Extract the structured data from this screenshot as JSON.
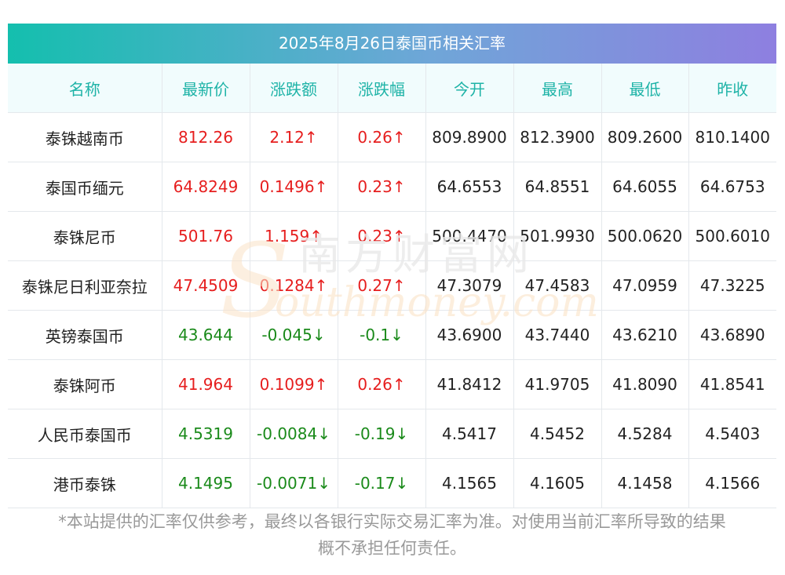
{
  "title": "2025年8月26日泰国币相关汇率",
  "headers": [
    "名称",
    "最新价",
    "涨跌额",
    "涨跌幅",
    "今开",
    "最高",
    "最低",
    "昨收"
  ],
  "rows": [
    {
      "name": "泰铢越南币",
      "price": "812.26",
      "change": "2.12↑",
      "pct": "0.26↑",
      "open": "809.8900",
      "high": "812.3900",
      "low": "809.2600",
      "prev": "810.1400",
      "dir": "up"
    },
    {
      "name": "泰国币缅元",
      "price": "64.8249",
      "change": "0.1496↑",
      "pct": "0.23↑",
      "open": "64.6553",
      "high": "64.8551",
      "low": "64.6055",
      "prev": "64.6753",
      "dir": "up"
    },
    {
      "name": "泰铢尼币",
      "price": "501.76",
      "change": "1.159↑",
      "pct": "0.23↑",
      "open": "500.4470",
      "high": "501.9930",
      "low": "500.0620",
      "prev": "500.6010",
      "dir": "up"
    },
    {
      "name": "泰铢尼日利亚奈拉",
      "price": "47.4509",
      "change": "0.1284↑",
      "pct": "0.27↑",
      "open": "47.3079",
      "high": "47.4583",
      "low": "47.0959",
      "prev": "47.3225",
      "dir": "up"
    },
    {
      "name": "英镑泰国币",
      "price": "43.644",
      "change": "-0.045↓",
      "pct": "-0.1↓",
      "open": "43.6900",
      "high": "43.7440",
      "low": "43.6210",
      "prev": "43.6890",
      "dir": "down"
    },
    {
      "name": "泰铢阿币",
      "price": "41.964",
      "change": "0.1099↑",
      "pct": "0.26↑",
      "open": "41.8412",
      "high": "41.9705",
      "low": "41.8090",
      "prev": "41.8541",
      "dir": "up"
    },
    {
      "name": "人民币泰国币",
      "price": "4.5319",
      "change": "-0.0084↓",
      "pct": "-0.19↓",
      "open": "4.5417",
      "high": "4.5452",
      "low": "4.5284",
      "prev": "4.5403",
      "dir": "down"
    },
    {
      "name": "港币泰铢",
      "price": "4.1495",
      "change": "-0.0071↓",
      "pct": "-0.17↓",
      "open": "4.1565",
      "high": "4.1605",
      "low": "4.1458",
      "prev": "4.1566",
      "dir": "down"
    }
  ],
  "watermark": {
    "cn": "南方财富网",
    "en": "outhmoney.com",
    "s": "S"
  },
  "footnote": {
    "line1": "*本站提供的汇率仅供参考，最终以各银行实际交易汇率为准。对使用当前汇率所导致的结果",
    "line2": "概不承担任何责任。"
  },
  "colors": {
    "up": "#e61e1e",
    "down": "#1a8a1a",
    "header_text": "#1eb3a7",
    "title_gradient": [
      "#14bfae",
      "#8e7fe0"
    ]
  }
}
